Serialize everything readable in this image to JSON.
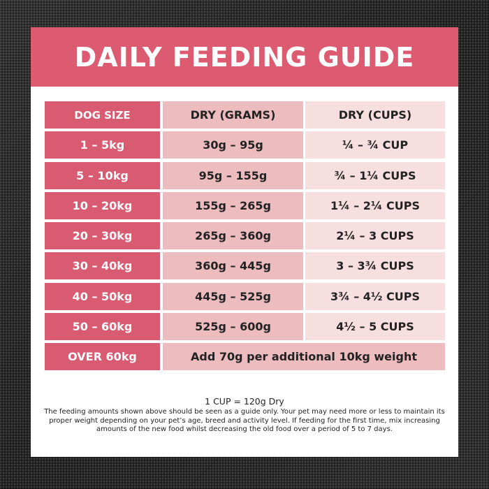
{
  "title": "DAILY FEEDING GUIDE",
  "table": {
    "headers": [
      "DOG SIZE",
      "DRY (GRAMS)",
      "DRY (CUPS)"
    ],
    "rows": [
      {
        "size": "1 – 5kg",
        "grams": "30g – 95g",
        "cups": "¼ – ¾ CUP"
      },
      {
        "size": "5 – 10kg",
        "grams": "95g – 155g",
        "cups": "¾ – 1¼ CUPS"
      },
      {
        "size": "10 – 20kg",
        "grams": "155g – 265g",
        "cups": "1¼ – 2¼ CUPS"
      },
      {
        "size": "20 – 30kg",
        "grams": "265g – 360g",
        "cups": "2¼ – 3 CUPS"
      },
      {
        "size": "30 – 40kg",
        "grams": "360g – 445g",
        "cups": "3 – 3¾ CUPS"
      },
      {
        "size": "40 – 50kg",
        "grams": "445g – 525g",
        "cups": "3¾ – 4½ CUPS"
      },
      {
        "size": "50 – 60kg",
        "grams": "525g – 600g",
        "cups": "4½ – 5 CUPS"
      }
    ],
    "last_row": {
      "size": "OVER 60kg",
      "note": "Add 70g per additional 10kg weight"
    }
  },
  "footer": {
    "conversion": "1 CUP = 120g Dry",
    "note": "The feeding amounts shown above should be seen as a guide only. Your pet may need more or less to maintain its proper weight depending on your pet’s age, breed and activity level. If feeding for the first time, mix increasing amounts of the new food whilst decreasing the old food over a period of 5 to 7 days."
  },
  "colors": {
    "banner": "#dc5b70",
    "size_column": "#d95b71",
    "grams_column": "#edbcbf",
    "cups_column": "#f7dfdf"
  }
}
